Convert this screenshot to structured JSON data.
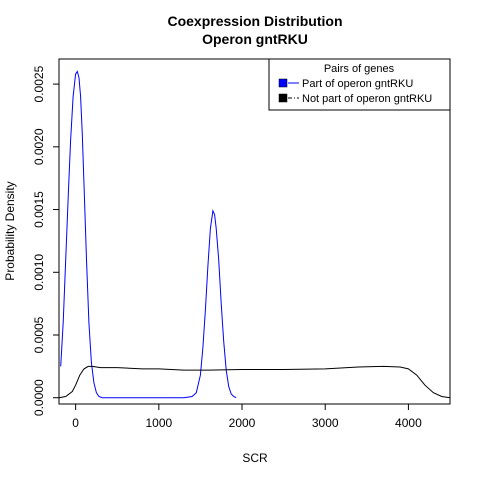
{
  "chart_data": {
    "type": "line",
    "title_line1": "Coexpression Distribution",
    "title_line2": "Operon gntRKU",
    "xlabel": "SCR",
    "ylabel": "Probability Density",
    "xlim": [
      -200,
      4500
    ],
    "ylim": [
      -5e-05,
      0.0027
    ],
    "x_ticks": [
      0,
      1000,
      2000,
      3000,
      4000
    ],
    "x_tick_labels": [
      "0",
      "1000",
      "2000",
      "3000",
      "4000"
    ],
    "y_ticks": [
      0,
      0.0005,
      0.001,
      0.0015,
      0.002,
      0.0025
    ],
    "y_tick_labels": [
      "0.0000",
      "0.0005",
      "0.0010",
      "0.0015",
      "0.0020",
      "0.0025"
    ],
    "grid": false,
    "legend": {
      "title": "Pairs of genes",
      "position": "top-right",
      "entries": [
        "Part of operon gntRKU",
        "Not part of operon gntRKU"
      ]
    },
    "series": [
      {
        "color": "#0000ff",
        "style": "solid",
        "x": [
          -180,
          -150,
          -120,
          -90,
          -60,
          -30,
          0,
          20,
          40,
          60,
          80,
          100,
          130,
          160,
          190,
          220,
          250,
          280,
          320,
          360,
          420,
          500,
          700,
          1000,
          1300,
          1400,
          1450,
          1500,
          1530,
          1560,
          1590,
          1620,
          1650,
          1670,
          1690,
          1720,
          1750,
          1780,
          1810,
          1840,
          1870,
          1900,
          1930
        ],
        "y": [
          0.00025,
          0.0006,
          0.0011,
          0.0016,
          0.00205,
          0.0024,
          0.00258,
          0.0026,
          0.00255,
          0.0024,
          0.0021,
          0.0017,
          0.0011,
          0.0006,
          0.00028,
          0.00012,
          4e-05,
          1e-05,
          0.0,
          0.0,
          0.0,
          0.0,
          0.0,
          0.0,
          0.0,
          1e-05,
          4e-05,
          0.00018,
          0.0004,
          0.0007,
          0.00105,
          0.00135,
          0.00149,
          0.00146,
          0.00135,
          0.0011,
          0.00075,
          0.00045,
          0.00022,
          9e-05,
          3e-05,
          1e-05,
          0.0
        ]
      },
      {
        "color": "#000000",
        "style": "solid",
        "x": [
          -200,
          -120,
          -40,
          0,
          50,
          100,
          150,
          200,
          300,
          500,
          800,
          1000,
          1300,
          1600,
          2000,
          2500,
          3000,
          3400,
          3700,
          3900,
          4000,
          4100,
          4200,
          4300,
          4400,
          4500
        ],
        "y": [
          0.0,
          1e-05,
          5e-05,
          0.0001,
          0.00018,
          0.00023,
          0.00025,
          0.00025,
          0.00024,
          0.00024,
          0.00023,
          0.00023,
          0.00022,
          0.00022,
          0.000225,
          0.000225,
          0.00023,
          0.000245,
          0.00025,
          0.000245,
          0.00023,
          0.00018,
          0.0001,
          4e-05,
          1e-05,
          0.0
        ]
      }
    ]
  }
}
